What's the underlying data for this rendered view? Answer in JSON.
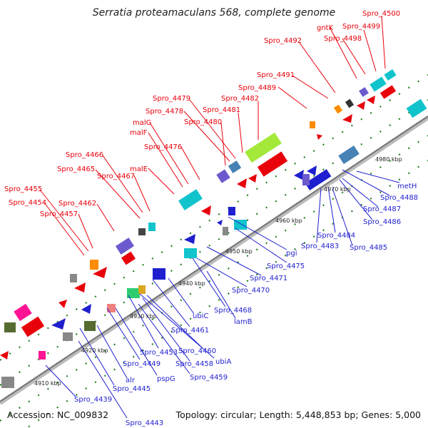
{
  "title": "Serratia proteamaculans 568, complete genome",
  "accession": "Accession: NC_009832",
  "summary": "Topology: circular; Length: 5,448,853 bp; Genes: 5,000",
  "ticks": [
    "4910 kbp",
    "4920 kbp",
    "4930 kbp",
    "4940 kbp",
    "4950 kbp",
    "4960 kbp",
    "4970 kbp",
    "4980 kbp"
  ],
  "forward_labels": [
    "Spro_4500",
    "Spro_4499",
    "gntK",
    "Spro_4498",
    "Spro_4492",
    "Spro_4491",
    "Spro_4489",
    "Spro_4482",
    "Spro_4479",
    "Spro_4481",
    "Spro_4478",
    "Spro_4480",
    "malG",
    "malF",
    "Spro_4476",
    "Spro_4466",
    "Spro_4465",
    "Spro_4467",
    "malE",
    "Spro_4455",
    "Spro_4454",
    "Spro_4462",
    "Spro_4457"
  ],
  "reverse_labels": [
    "metH",
    "Spro_4488",
    "Spro_4487",
    "Spro_4486",
    "Spro_4484",
    "Spro_4483",
    "Spro_4485",
    "pgi",
    "Spro_4475",
    "Spro_4471",
    "Spro_4470",
    "Spro_4468",
    "lamB",
    "ubiC",
    "Spro_4461",
    "Spro_4460",
    "ubiA",
    "Spro_4453",
    "Spro_4458",
    "Spro_4449",
    "Spro_4459",
    "alr",
    "pspG",
    "Spro_4445",
    "Spro_4439",
    "Spro_4443"
  ],
  "colors": {
    "forward": "#e8000b",
    "reverse": "#1f1fd0",
    "backbone": "#888888",
    "tick": "#1a7a1a"
  }
}
